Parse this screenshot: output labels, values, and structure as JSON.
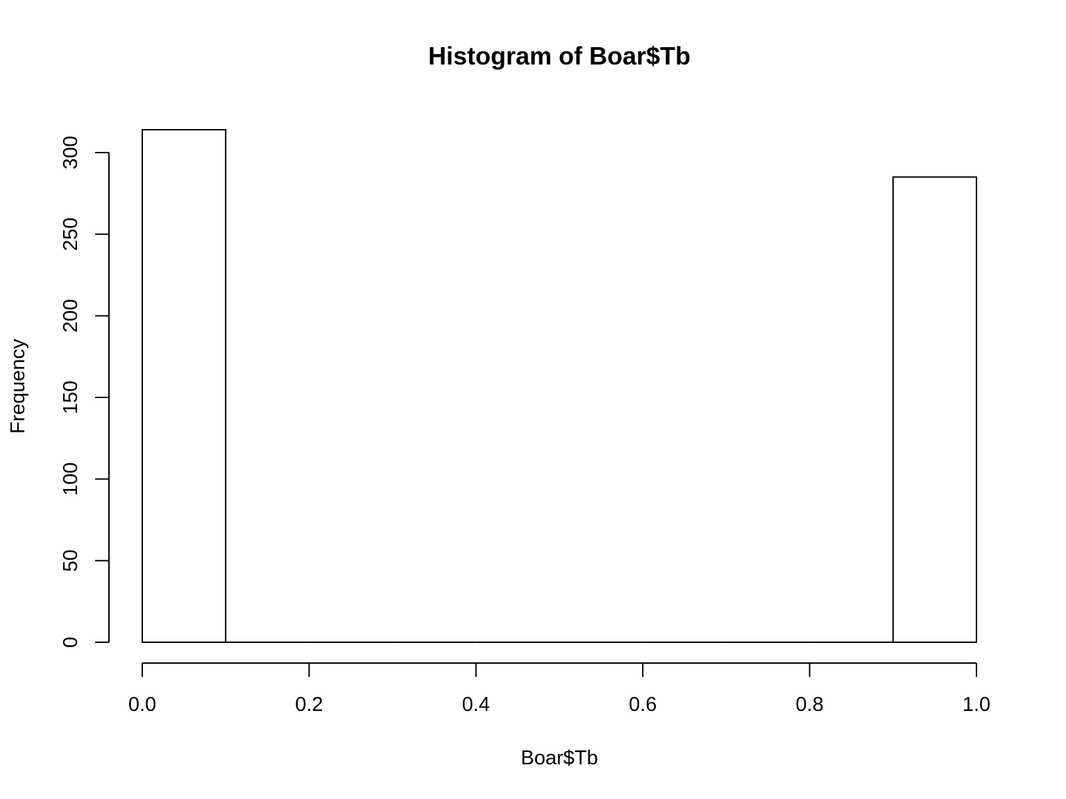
{
  "chart_data": {
    "type": "bar",
    "title": "Histogram of Boar$Tb",
    "xlabel": "Boar$Tb",
    "ylabel": "Frequency",
    "bins": [
      {
        "start": 0.0,
        "end": 0.1,
        "count": 314
      },
      {
        "start": 0.1,
        "end": 0.2,
        "count": 0
      },
      {
        "start": 0.2,
        "end": 0.3,
        "count": 0
      },
      {
        "start": 0.3,
        "end": 0.4,
        "count": 0
      },
      {
        "start": 0.4,
        "end": 0.5,
        "count": 0
      },
      {
        "start": 0.5,
        "end": 0.6,
        "count": 0
      },
      {
        "start": 0.6,
        "end": 0.7,
        "count": 0
      },
      {
        "start": 0.7,
        "end": 0.8,
        "count": 0
      },
      {
        "start": 0.8,
        "end": 0.9,
        "count": 0
      },
      {
        "start": 0.9,
        "end": 1.0,
        "count": 285
      }
    ],
    "xlim": [
      0,
      1
    ],
    "ylim": [
      0,
      314
    ],
    "x_ticks": [
      {
        "value": 0.0,
        "label": "0.0"
      },
      {
        "value": 0.2,
        "label": "0.2"
      },
      {
        "value": 0.4,
        "label": "0.4"
      },
      {
        "value": 0.6,
        "label": "0.6"
      },
      {
        "value": 0.8,
        "label": "0.8"
      },
      {
        "value": 1.0,
        "label": "1.0"
      }
    ],
    "y_ticks": [
      {
        "value": 0,
        "label": "0"
      },
      {
        "value": 50,
        "label": "50"
      },
      {
        "value": 100,
        "label": "100"
      },
      {
        "value": 150,
        "label": "150"
      },
      {
        "value": 200,
        "label": "200"
      },
      {
        "value": 250,
        "label": "250"
      },
      {
        "value": 300,
        "label": "300"
      }
    ],
    "grid": false,
    "legend": "none",
    "colors": {
      "bar_fill": "#ffffff",
      "bar_stroke": "#000000"
    }
  }
}
